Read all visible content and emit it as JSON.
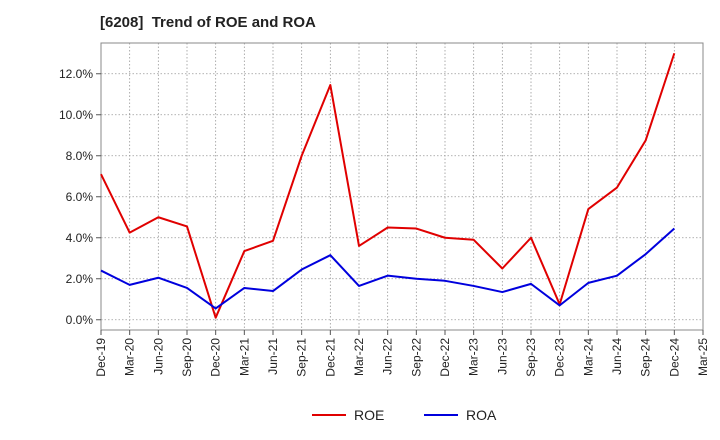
{
  "chart_data": {
    "type": "line",
    "title": "[6208]  Trend of ROE and ROA",
    "xlabel": "",
    "ylabel": "",
    "x": [
      "Dec-19",
      "Mar-20",
      "Jun-20",
      "Sep-20",
      "Dec-20",
      "Mar-21",
      "Jun-21",
      "Sep-21",
      "Dec-21",
      "Mar-22",
      "Jun-22",
      "Sep-22",
      "Dec-22",
      "Mar-23",
      "Jun-23",
      "Sep-23",
      "Dec-23",
      "Mar-24",
      "Jun-24",
      "Sep-24",
      "Dec-24",
      "Mar-25"
    ],
    "ylim": [
      -0.5,
      13.5
    ],
    "yticks": [
      0,
      2,
      4,
      6,
      8,
      10,
      12
    ],
    "ytick_labels": [
      "0.0%",
      "2.0%",
      "4.0%",
      "6.0%",
      "8.0%",
      "10.0%",
      "12.0%"
    ],
    "grid": true,
    "legend_position": "bottom",
    "series": [
      {
        "name": "ROE",
        "color": "#e00000",
        "values": [
          7.1,
          4.25,
          5.0,
          4.55,
          0.1,
          3.35,
          3.85,
          8.0,
          11.45,
          3.6,
          4.5,
          4.45,
          4.0,
          3.9,
          2.5,
          4.0,
          0.75,
          5.4,
          6.45,
          8.75,
          13.0,
          null
        ]
      },
      {
        "name": "ROA",
        "color": "#0000dd",
        "values": [
          2.4,
          1.7,
          2.05,
          1.55,
          0.55,
          1.55,
          1.4,
          2.45,
          3.15,
          1.65,
          2.15,
          2.0,
          1.9,
          1.65,
          1.35,
          1.75,
          0.7,
          1.8,
          2.15,
          3.2,
          4.45,
          null
        ]
      }
    ]
  }
}
